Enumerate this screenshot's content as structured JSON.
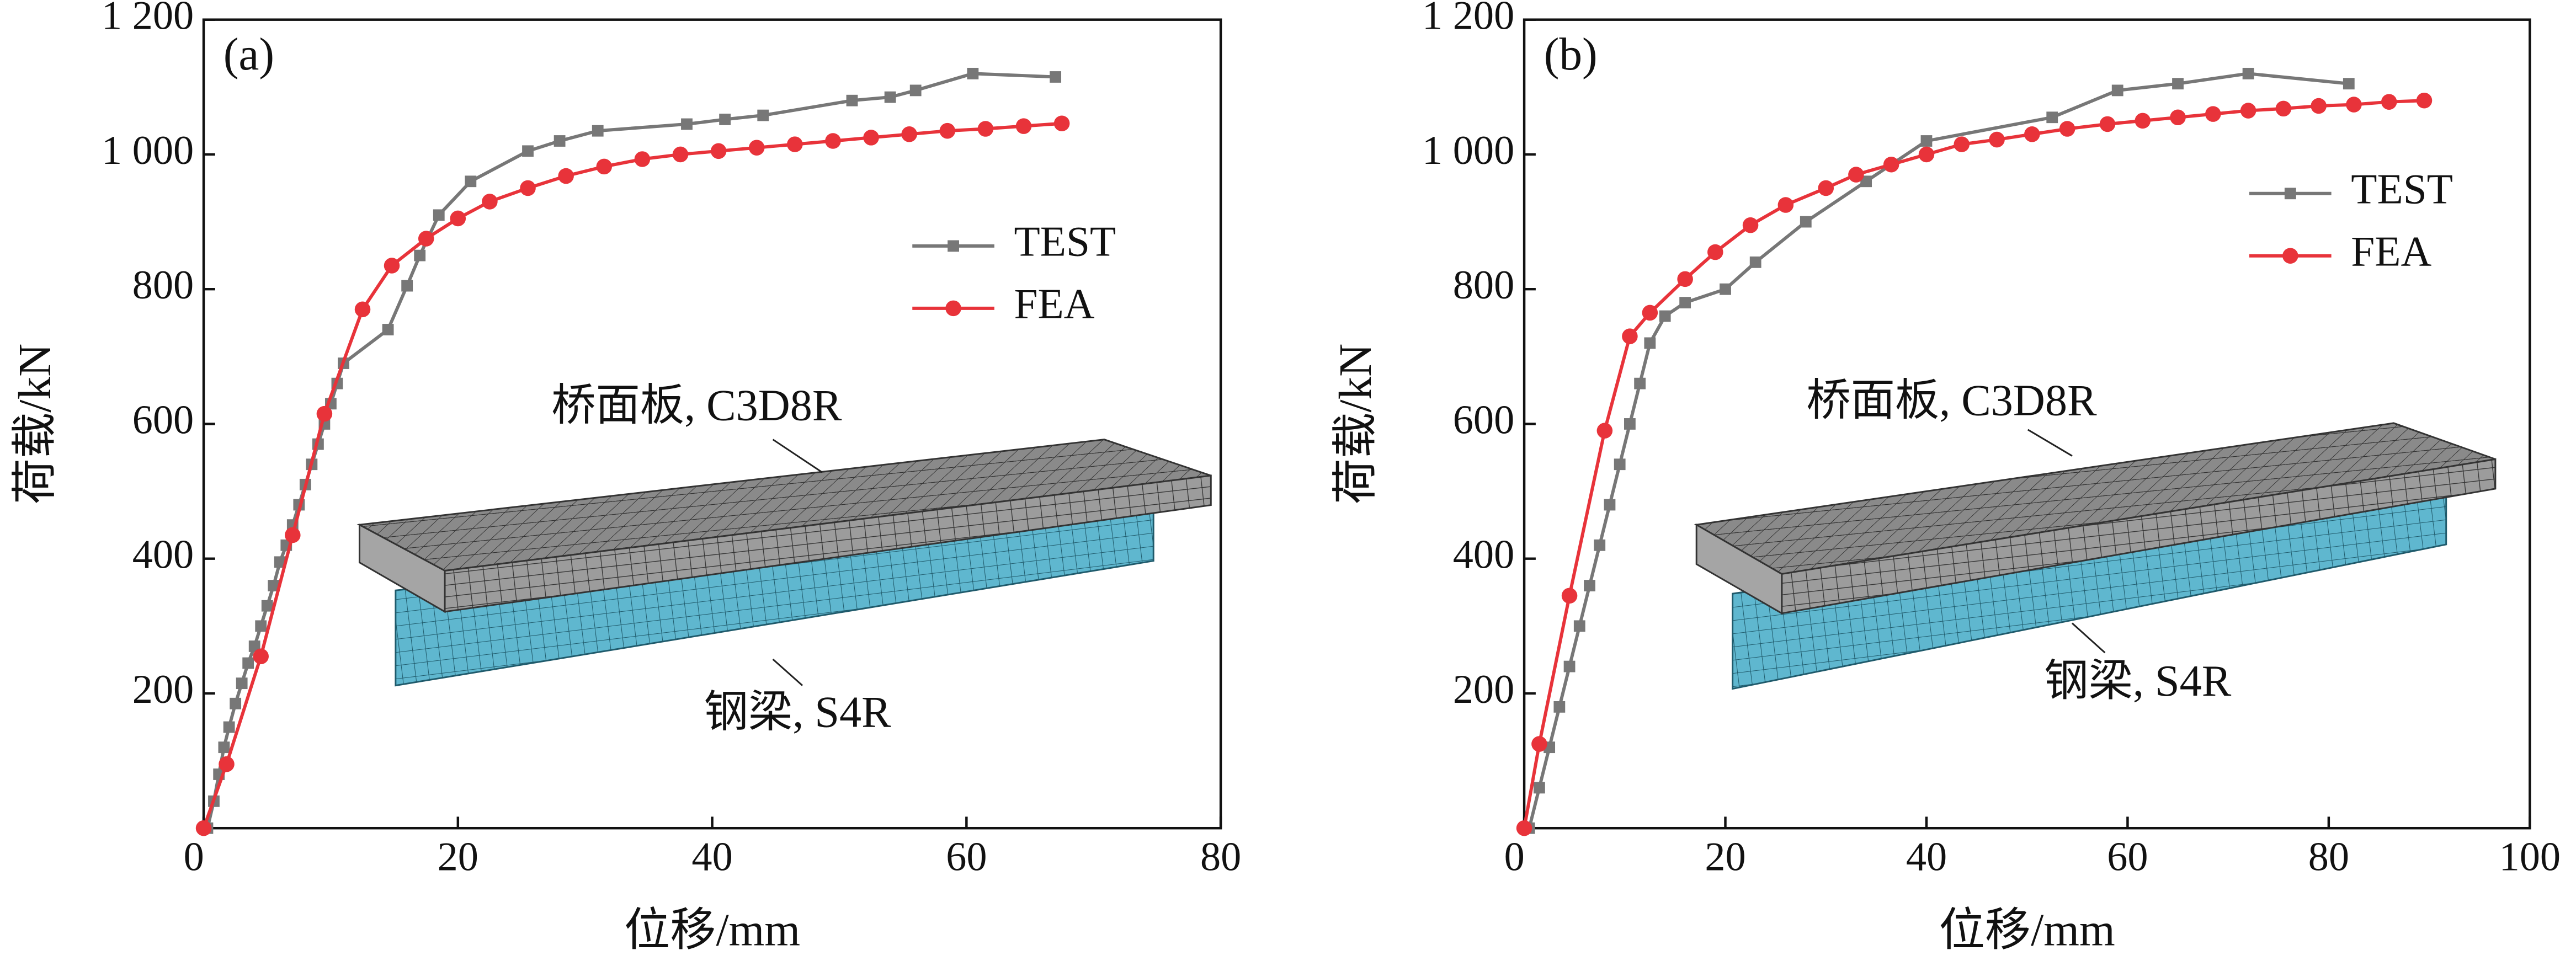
{
  "chart_data": [
    {
      "type": "line",
      "label": "(a)",
      "x_label": "位移/mm",
      "y_label": "荷载/kN",
      "xlim": [
        0,
        80
      ],
      "xticks": [
        0,
        20,
        40,
        60,
        80
      ],
      "ylim": [
        0,
        1200
      ],
      "yticks": [
        200,
        400,
        600,
        800,
        {
          "value": 1000,
          "label": "1 000"
        },
        {
          "value": 1200,
          "label": "1 200"
        }
      ],
      "legend": "right",
      "annotations": [
        "桥面板, C3D8R",
        "钢梁, S4R"
      ],
      "series": [
        {
          "name": "TEST",
          "color": "#777777",
          "marker": "square",
          "x": [
            0.3,
            0.8,
            1.2,
            1.6,
            2.0,
            2.5,
            3,
            3.5,
            4,
            4.5,
            5,
            5.5,
            6,
            6.5,
            7,
            7.5,
            8,
            8.5,
            9,
            9.5,
            10,
            10.5,
            11,
            14.5,
            16,
            17,
            18.5,
            21,
            25.5,
            28,
            31,
            38,
            41,
            44,
            51,
            54,
            56,
            60.5,
            67
          ],
          "values": [
            0,
            40,
            80,
            120,
            150,
            185,
            215,
            245,
            270,
            300,
            330,
            360,
            395,
            420,
            450,
            480,
            510,
            540,
            570,
            600,
            630,
            660,
            690,
            740,
            805,
            850,
            910,
            960,
            1005,
            1020,
            1035,
            1045,
            1052,
            1058,
            1080,
            1085,
            1095,
            1120,
            1115
          ]
        },
        {
          "name": "FEA",
          "color": "#e8333a",
          "marker": "circle",
          "x": [
            0,
            1.8,
            4.5,
            7,
            9.5,
            12.5,
            14.8,
            17.5,
            20,
            22.5,
            25.5,
            28.5,
            31.5,
            34.5,
            37.5,
            40.5,
            43.5,
            46.5,
            49.5,
            52.5,
            55.5,
            58.5,
            61.5,
            64.5,
            67.5
          ],
          "values": [
            0,
            95,
            255,
            435,
            615,
            770,
            835,
            875,
            905,
            930,
            950,
            968,
            982,
            993,
            1000,
            1005,
            1010,
            1015,
            1020,
            1025,
            1030,
            1035,
            1038,
            1042,
            1046
          ]
        }
      ]
    },
    {
      "type": "line",
      "label": "(b)",
      "x_label": "位移/mm",
      "y_label": "荷载/kN",
      "xlim": [
        0,
        100
      ],
      "xticks": [
        0,
        20,
        40,
        60,
        80,
        100
      ],
      "ylim": [
        0,
        1200
      ],
      "yticks": [
        200,
        400,
        600,
        800,
        {
          "value": 1000,
          "label": "1 000"
        },
        {
          "value": 1200,
          "label": "1 200"
        }
      ],
      "legend": "right",
      "annotations": [
        "桥面板, C3D8R",
        "钢梁, S4R"
      ],
      "series": [
        {
          "name": "TEST",
          "color": "#777777",
          "marker": "square",
          "x": [
            0.5,
            1.5,
            2.5,
            3.5,
            4.5,
            5.5,
            6.5,
            7.5,
            8.5,
            9.5,
            10.5,
            11.5,
            12.5,
            14,
            16,
            20,
            23,
            28,
            34,
            40,
            52.5,
            59,
            65,
            72,
            82
          ],
          "values": [
            0,
            60,
            120,
            180,
            240,
            300,
            360,
            420,
            480,
            540,
            600,
            660,
            720,
            760,
            780,
            800,
            840,
            900,
            960,
            1020,
            1055,
            1095,
            1105,
            1120,
            1105
          ]
        },
        {
          "name": "FEA",
          "color": "#e8333a",
          "marker": "circle",
          "x": [
            0,
            1.5,
            4.5,
            8,
            10.5,
            12.5,
            16,
            19,
            22.5,
            26,
            30,
            33,
            36.5,
            40,
            43.5,
            47,
            50.5,
            54,
            58,
            61.5,
            65,
            68.5,
            72,
            75.5,
            79,
            82.5,
            86,
            89.5
          ],
          "values": [
            0,
            125,
            345,
            590,
            730,
            765,
            815,
            855,
            895,
            925,
            950,
            970,
            985,
            1000,
            1015,
            1022,
            1030,
            1038,
            1045,
            1050,
            1055,
            1060,
            1065,
            1068,
            1072,
            1074,
            1078,
            1080
          ]
        }
      ]
    }
  ]
}
